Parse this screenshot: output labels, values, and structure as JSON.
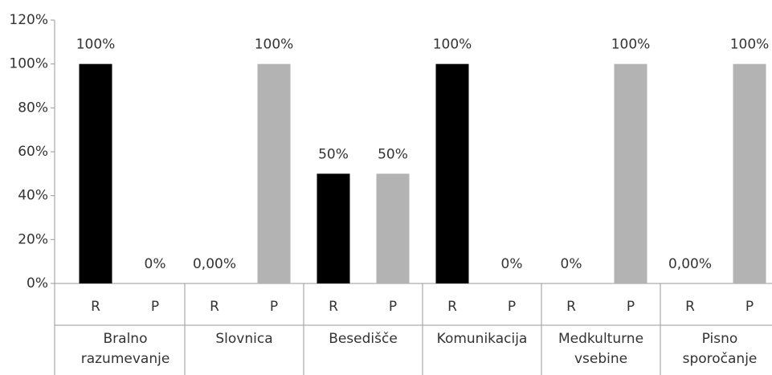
{
  "chart_data": {
    "type": "bar",
    "categories": [
      "Bralno razumevanje",
      "Slovnica",
      "Besedišče",
      "Komunikacija",
      "Medkulturne vsebine",
      "Pisno sporočanje"
    ],
    "series": [
      {
        "name": "R",
        "color": "#000000",
        "values": [
          100,
          0,
          50,
          100,
          0,
          0
        ],
        "value_labels": [
          "100%",
          "0,00%",
          "50%",
          "100%",
          "0%",
          "0,00%"
        ]
      },
      {
        "name": "P",
        "color": "#b3b3b3",
        "values": [
          0,
          100,
          50,
          0,
          100,
          100
        ],
        "value_labels": [
          "0%",
          "100%",
          "50%",
          "0%",
          "100%",
          "100%"
        ]
      }
    ],
    "ylim": [
      0,
      120
    ],
    "yticks": [
      {
        "value": 0,
        "label": "0%"
      },
      {
        "value": 20,
        "label": "20%"
      },
      {
        "value": 40,
        "label": "40%"
      },
      {
        "value": 60,
        "label": "60%"
      },
      {
        "value": 80,
        "label": "80%"
      },
      {
        "value": 100,
        "label": "100%"
      },
      {
        "value": 120,
        "label": "120%"
      }
    ],
    "grid": false
  }
}
